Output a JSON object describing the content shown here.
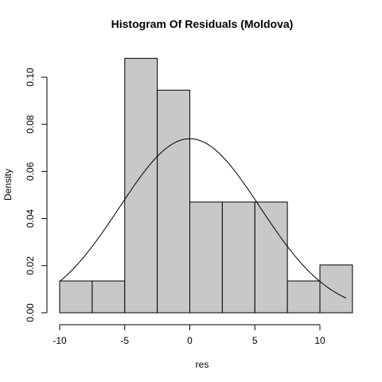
{
  "chart_data": {
    "type": "bar",
    "title": "Histogram Of Residuals (Moldova)",
    "xlabel": "res",
    "ylabel": "Density",
    "xlim": [
      -10,
      12
    ],
    "ylim": [
      0,
      0.11
    ],
    "x_ticks": [
      -10,
      -5,
      0,
      5,
      10
    ],
    "x_tick_labels": [
      "-10",
      "-5",
      "0",
      "5",
      "10"
    ],
    "y_ticks": [
      0,
      0.02,
      0.04,
      0.06,
      0.08,
      0.1
    ],
    "y_tick_labels": [
      "0.00",
      "0.02",
      "0.04",
      "0.06",
      "0.08",
      "0.10"
    ],
    "bins": [
      {
        "x0": -10,
        "x1": -7.5,
        "density": 0.0135
      },
      {
        "x0": -7.5,
        "x1": -5,
        "density": 0.0135
      },
      {
        "x0": -5,
        "x1": -2.5,
        "density": 0.108
      },
      {
        "x0": -2.5,
        "x1": 0,
        "density": 0.0945
      },
      {
        "x0": 0,
        "x1": 2.5,
        "density": 0.047
      },
      {
        "x0": 2.5,
        "x1": 5,
        "density": 0.047
      },
      {
        "x0": 5,
        "x1": 7.5,
        "density": 0.047
      },
      {
        "x0": 7.5,
        "x1": 10,
        "density": 0.0135
      },
      {
        "x0": 10,
        "x1": 12.5,
        "density": 0.0203
      }
    ],
    "normal_curve": {
      "mean": 0,
      "sd": 5.4,
      "x_from": -10,
      "x_to": 12
    },
    "bar_fill": "#c8c8c8",
    "bar_stroke": "#000000",
    "curve_color": "#000000",
    "grid": false
  }
}
